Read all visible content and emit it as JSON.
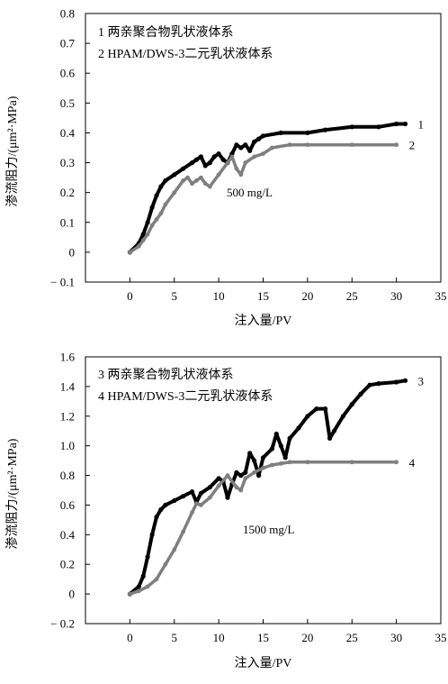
{
  "chart_data": [
    {
      "type": "line",
      "xlabel": "注入量/PV",
      "ylabel": "渗流阻力/(μm²·MPa)",
      "xlim": [
        -5,
        35
      ],
      "ylim": [
        -0.1,
        0.8
      ],
      "xticks": [
        "0",
        "5",
        "10",
        "15",
        "20",
        "25",
        "30",
        "35"
      ],
      "yticks": [
        "0.8",
        "0.7",
        "0.6",
        "0.5",
        "0.4",
        "0.3",
        "0.2",
        "0.1",
        "0",
        "− 0.1"
      ],
      "legend": [
        "1 两亲聚合物乳状液体系",
        "2 HPAM/DWS-3二元乳状液体系"
      ],
      "annotation": "500 mg/L",
      "grid": false,
      "series": [
        {
          "name": "1",
          "color": "#000000",
          "x": [
            0,
            1,
            1.5,
            2,
            2.5,
            3,
            3.5,
            4,
            5,
            6,
            7,
            7.5,
            8,
            8.5,
            9,
            9.5,
            10,
            10.5,
            11,
            11.5,
            12,
            12.5,
            13,
            13.5,
            14,
            14.5,
            15,
            17,
            20,
            22,
            25,
            28,
            30,
            31
          ],
          "values": [
            0.0,
            0.03,
            0.06,
            0.1,
            0.15,
            0.19,
            0.22,
            0.24,
            0.26,
            0.28,
            0.3,
            0.31,
            0.32,
            0.29,
            0.3,
            0.32,
            0.33,
            0.31,
            0.3,
            0.33,
            0.36,
            0.35,
            0.36,
            0.34,
            0.37,
            0.38,
            0.39,
            0.4,
            0.4,
            0.41,
            0.42,
            0.42,
            0.43,
            0.43
          ],
          "end_label": "1"
        },
        {
          "name": "2",
          "color": "#7f7f7f",
          "x": [
            0,
            1,
            1.5,
            2,
            2.5,
            3,
            3.5,
            4,
            5,
            6,
            6.5,
            7,
            7.5,
            8,
            8.5,
            9,
            10,
            11,
            11.5,
            12,
            12.5,
            13,
            14,
            15,
            16,
            18,
            20,
            25,
            30
          ],
          "values": [
            0.0,
            0.02,
            0.04,
            0.06,
            0.09,
            0.11,
            0.13,
            0.16,
            0.2,
            0.24,
            0.25,
            0.23,
            0.24,
            0.25,
            0.23,
            0.22,
            0.26,
            0.3,
            0.32,
            0.28,
            0.26,
            0.3,
            0.32,
            0.33,
            0.35,
            0.36,
            0.36,
            0.36,
            0.36
          ],
          "end_label": "2"
        }
      ]
    },
    {
      "type": "line",
      "xlabel": "注入量/PV",
      "ylabel": "渗流阻力/(μm²·MPa)",
      "xlim": [
        -5,
        35
      ],
      "ylim": [
        -0.2,
        1.6
      ],
      "xticks": [
        "0",
        "5",
        "10",
        "15",
        "20",
        "25",
        "30",
        "35"
      ],
      "yticks": [
        "1.6",
        "1.4",
        "1.2",
        "1.0",
        "0.8",
        "0.6",
        "0.4",
        "0.2",
        "0",
        "− 0.2"
      ],
      "legend": [
        "3 两亲聚合物乳状液体系",
        "4 HPAM/DWS-3二元乳状液体系"
      ],
      "annotation": "1500 mg/L",
      "grid": false,
      "series": [
        {
          "name": "3",
          "color": "#000000",
          "x": [
            0,
            1,
            1.5,
            2,
            2.5,
            3,
            3.5,
            4,
            5,
            6,
            7,
            7.5,
            8,
            9,
            10,
            10.5,
            11,
            11.5,
            12,
            12.5,
            13,
            13.5,
            14,
            14.5,
            15,
            16,
            16.5,
            17,
            17.5,
            18,
            19,
            20,
            21,
            22,
            22.5,
            23,
            24,
            25,
            26,
            27,
            28,
            30,
            31
          ],
          "values": [
            0.0,
            0.05,
            0.12,
            0.25,
            0.4,
            0.52,
            0.57,
            0.6,
            0.63,
            0.66,
            0.69,
            0.62,
            0.68,
            0.72,
            0.78,
            0.76,
            0.65,
            0.74,
            0.82,
            0.8,
            0.82,
            0.95,
            0.9,
            0.8,
            0.92,
            0.98,
            1.08,
            1.0,
            0.92,
            1.05,
            1.12,
            1.2,
            1.25,
            1.25,
            1.05,
            1.1,
            1.2,
            1.28,
            1.35,
            1.41,
            1.42,
            1.43,
            1.44
          ],
          "end_label": "3"
        },
        {
          "name": "4",
          "color": "#7f7f7f",
          "x": [
            0,
            1,
            2,
            3,
            4,
            5,
            6,
            7,
            7.5,
            8,
            9,
            10,
            11,
            12,
            12.5,
            13,
            14,
            15,
            16,
            17,
            18,
            20,
            25,
            30
          ],
          "values": [
            0.0,
            0.02,
            0.05,
            0.1,
            0.2,
            0.3,
            0.42,
            0.55,
            0.61,
            0.6,
            0.65,
            0.73,
            0.8,
            0.72,
            0.7,
            0.78,
            0.82,
            0.85,
            0.87,
            0.88,
            0.89,
            0.89,
            0.89,
            0.89
          ],
          "end_label": "4"
        }
      ]
    }
  ]
}
